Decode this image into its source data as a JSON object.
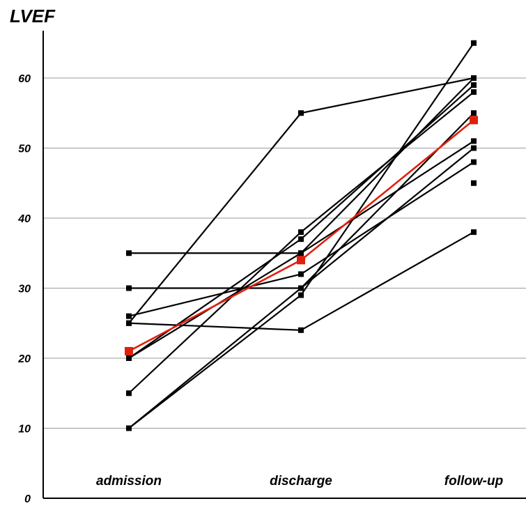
{
  "chart_data": {
    "type": "line",
    "ylabel": "LVEF",
    "xlabel": "",
    "categories": [
      "admission",
      "discharge",
      "follow-up"
    ],
    "ylim": [
      0,
      65
    ],
    "yticks": [
      0,
      10,
      20,
      30,
      40,
      50,
      60
    ],
    "grid": true,
    "legend": "none",
    "series": [
      {
        "values": [
          35,
          35,
          60
        ]
      },
      {
        "values": [
          30,
          30,
          55
        ]
      },
      {
        "values": [
          26,
          32,
          48
        ]
      },
      {
        "values": [
          25,
          24,
          38
        ]
      },
      {
        "values": [
          25,
          55,
          60
        ]
      },
      {
        "values": [
          20,
          37,
          59
        ]
      },
      {
        "values": [
          20,
          35,
          51
        ]
      },
      {
        "values": [
          15,
          38,
          58
        ]
      },
      {
        "values": [
          10,
          30,
          50
        ]
      },
      {
        "values": [
          10,
          29,
          65
        ]
      },
      {
        "values": [
          null,
          null,
          45
        ]
      },
      {
        "values": [
          21,
          34,
          54
        ],
        "highlight": true
      }
    ],
    "colors": {
      "individual": "#000000",
      "mean": "#e0200c"
    }
  }
}
